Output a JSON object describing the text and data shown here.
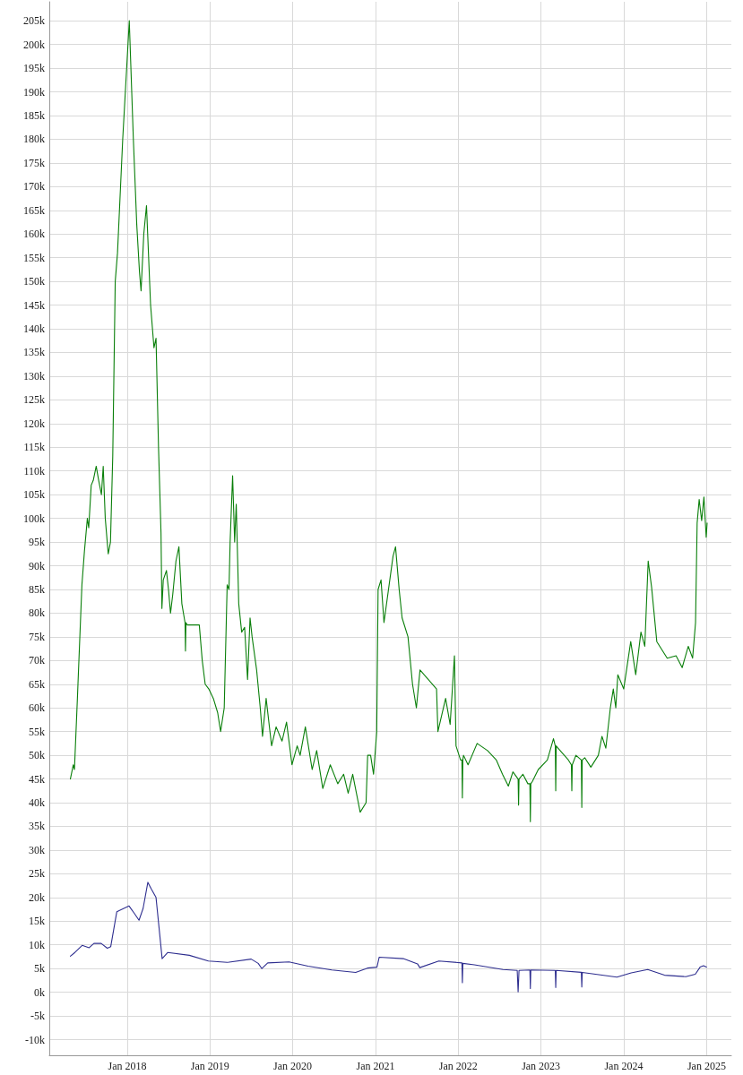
{
  "chart_data": {
    "type": "line",
    "xlim": [
      "2017-01-22",
      "2025-04-20"
    ],
    "ylim": [
      -13300,
      209000
    ],
    "xticks": [
      {
        "value": "2018-01-01",
        "label": "Jan 2018"
      },
      {
        "value": "2019-01-01",
        "label": "Jan 2019"
      },
      {
        "value": "2020-01-01",
        "label": "Jan 2020"
      },
      {
        "value": "2021-01-01",
        "label": "Jan 2021"
      },
      {
        "value": "2022-01-01",
        "label": "Jan 2022"
      },
      {
        "value": "2023-01-01",
        "label": "Jan 2023"
      },
      {
        "value": "2024-01-01",
        "label": "Jan 2024"
      },
      {
        "value": "2025-01-01",
        "label": "Jan 2025"
      }
    ],
    "yticks": [
      {
        "value": -10000,
        "label": "-10k"
      },
      {
        "value": -5000,
        "label": "-5k"
      },
      {
        "value": 0,
        "label": "0k"
      },
      {
        "value": 5000,
        "label": "5k"
      },
      {
        "value": 10000,
        "label": "10k"
      },
      {
        "value": 15000,
        "label": "15k"
      },
      {
        "value": 20000,
        "label": "20k"
      },
      {
        "value": 25000,
        "label": "25k"
      },
      {
        "value": 30000,
        "label": "30k"
      },
      {
        "value": 35000,
        "label": "35k"
      },
      {
        "value": 40000,
        "label": "40k"
      },
      {
        "value": 45000,
        "label": "45k"
      },
      {
        "value": 50000,
        "label": "50k"
      },
      {
        "value": 55000,
        "label": "55k"
      },
      {
        "value": 60000,
        "label": "60k"
      },
      {
        "value": 65000,
        "label": "65k"
      },
      {
        "value": 70000,
        "label": "70k"
      },
      {
        "value": 75000,
        "label": "75k"
      },
      {
        "value": 80000,
        "label": "80k"
      },
      {
        "value": 85000,
        "label": "85k"
      },
      {
        "value": 90000,
        "label": "90k"
      },
      {
        "value": 95000,
        "label": "95k"
      },
      {
        "value": 100000,
        "label": "100k"
      },
      {
        "value": 105000,
        "label": "105k"
      },
      {
        "value": 110000,
        "label": "110k"
      },
      {
        "value": 115000,
        "label": "115k"
      },
      {
        "value": 120000,
        "label": "120k"
      },
      {
        "value": 125000,
        "label": "125k"
      },
      {
        "value": 130000,
        "label": "130k"
      },
      {
        "value": 135000,
        "label": "135k"
      },
      {
        "value": 140000,
        "label": "140k"
      },
      {
        "value": 145000,
        "label": "145k"
      },
      {
        "value": 150000,
        "label": "150k"
      },
      {
        "value": 155000,
        "label": "155k"
      },
      {
        "value": 160000,
        "label": "160k"
      },
      {
        "value": 165000,
        "label": "165k"
      },
      {
        "value": 170000,
        "label": "170k"
      },
      {
        "value": 175000,
        "label": "175k"
      },
      {
        "value": 180000,
        "label": "180k"
      },
      {
        "value": 185000,
        "label": "185k"
      },
      {
        "value": 190000,
        "label": "190k"
      },
      {
        "value": 195000,
        "label": "195k"
      },
      {
        "value": 200000,
        "label": "200k"
      },
      {
        "value": 205000,
        "label": "205k"
      }
    ],
    "grid": true,
    "marker": "none",
    "series": [
      {
        "color": "#0a7f0a",
        "x": [
          "2017-04-25",
          "2017-05-08",
          "2017-05-13",
          "2017-05-26",
          "2017-06-15",
          "2017-06-26",
          "2017-07-09",
          "2017-07-15",
          "2017-07-26",
          "2017-08-04",
          "2017-08-17",
          "2017-08-28",
          "2017-09-09",
          "2017-09-17",
          "2017-09-26",
          "2017-10-09",
          "2017-10-19",
          "2017-10-29",
          "2017-11-09",
          "2017-11-19",
          "2017-12-12",
          "2018-01-10",
          "2018-01-28",
          "2018-02-12",
          "2018-02-24",
          "2018-03-03",
          "2018-03-15",
          "2018-03-27",
          "2018-04-14",
          "2018-04-29",
          "2018-05-08",
          "2018-05-19",
          "2018-05-30",
          "2018-06-03",
          "2018-06-09",
          "2018-06-23",
          "2018-07-02",
          "2018-07-11",
          "2018-07-21",
          "2018-08-04",
          "2018-08-17",
          "2018-08-30",
          "2018-09-13",
          "2018-09-15",
          "2018-09-17",
          "2018-09-23",
          "2018-11-15",
          "2018-11-28",
          "2018-12-11",
          "2018-12-27",
          "2019-01-16",
          "2019-02-04",
          "2019-02-17",
          "2019-03-05",
          "2019-03-18",
          "2019-03-26",
          "2019-03-31",
          "2019-04-11",
          "2019-04-20",
          "2019-04-27",
          "2019-05-08",
          "2019-05-21",
          "2019-06-03",
          "2019-06-16",
          "2019-06-27",
          "2019-07-06",
          "2019-07-26",
          "2019-08-11",
          "2019-08-21",
          "2019-09-06",
          "2019-09-30",
          "2019-10-20",
          "2019-11-15",
          "2019-12-05",
          "2019-12-29",
          "2020-01-21",
          "2020-02-03",
          "2020-02-26",
          "2020-03-27",
          "2020-04-16",
          "2020-05-13",
          "2020-06-15",
          "2020-07-18",
          "2020-08-13",
          "2020-09-02",
          "2020-09-22",
          "2020-10-25",
          "2020-11-20",
          "2020-11-27",
          "2020-12-10",
          "2020-12-23",
          "2021-01-06",
          "2021-01-12",
          "2021-01-25",
          "2021-02-07",
          "2021-03-19",
          "2021-03-30",
          "2021-04-15",
          "2021-04-28",
          "2021-05-24",
          "2021-06-13",
          "2021-06-30",
          "2021-07-16",
          "2021-09-27",
          "2021-10-03",
          "2021-11-06",
          "2021-11-26",
          "2021-12-15",
          "2021-12-22",
          "2022-01-11",
          "2022-01-17",
          "2022-01-19",
          "2022-01-21",
          "2022-01-24",
          "2022-02-13",
          "2022-03-25",
          "2022-05-10",
          "2022-06-18",
          "2022-07-15",
          "2022-08-10",
          "2022-08-30",
          "2022-09-22",
          "2022-09-24",
          "2022-09-26",
          "2022-10-13",
          "2022-11-04",
          "2022-11-13",
          "2022-11-15",
          "2022-11-17",
          "2022-11-24",
          "2022-12-20",
          "2023-01-29",
          "2023-02-25",
          "2023-03-05",
          "2023-03-07",
          "2023-03-09",
          "2023-03-17",
          "2023-05-02",
          "2023-05-15",
          "2023-05-17",
          "2023-05-19",
          "2023-06-04",
          "2023-06-28",
          "2023-06-30",
          "2023-07-02",
          "2023-07-13",
          "2023-08-09",
          "2023-09-11",
          "2023-09-27",
          "2023-10-14",
          "2023-11-03",
          "2023-11-16",
          "2023-11-27",
          "2023-12-06",
          "2024-01-01",
          "2024-02-01",
          "2024-02-23",
          "2024-03-17",
          "2024-04-03",
          "2024-04-18",
          "2024-05-03",
          "2024-05-26",
          "2024-07-11",
          "2024-08-19",
          "2024-09-15",
          "2024-10-12",
          "2024-10-31",
          "2024-11-13",
          "2024-11-20",
          "2024-11-29",
          "2024-12-10",
          "2024-12-20",
          "2024-12-30",
          "2025-01-03"
        ],
        "values": [
          45000,
          48000,
          47000,
          62000,
          86000,
          93000,
          100000,
          98000,
          107000,
          108000,
          111000,
          108000,
          105000,
          111000,
          100000,
          92500,
          95000,
          113000,
          150000,
          156000,
          180000,
          205000,
          180000,
          162000,
          152000,
          148000,
          160000,
          166000,
          145000,
          136000,
          138000,
          115000,
          97000,
          81000,
          87000,
          89000,
          85000,
          80000,
          84000,
          91000,
          94000,
          82000,
          78000,
          72000,
          78000,
          77500,
          77500,
          70000,
          65000,
          64000,
          62000,
          59000,
          55000,
          60000,
          86000,
          85000,
          95000,
          109000,
          95000,
          103000,
          82000,
          76000,
          77000,
          66000,
          79000,
          75000,
          68000,
          60000,
          54000,
          62000,
          52000,
          56000,
          53000,
          57000,
          48000,
          52000,
          50000,
          56000,
          47000,
          51000,
          43000,
          48000,
          44000,
          46000,
          42000,
          46000,
          38000,
          40000,
          50000,
          50000,
          46000,
          55000,
          85000,
          87000,
          78000,
          92000,
          94000,
          85000,
          79000,
          75000,
          65000,
          60000,
          68000,
          64000,
          55000,
          62000,
          56500,
          71000,
          52000,
          49000,
          49000,
          41000,
          49000,
          50000,
          48000,
          52500,
          51000,
          49000,
          46000,
          43500,
          46500,
          45000,
          39500,
          45000,
          46000,
          44000,
          44000,
          36000,
          44000,
          44500,
          47000,
          49000,
          53500,
          52000,
          42500,
          52000,
          51500,
          49000,
          48000,
          42500,
          48000,
          50000,
          49000,
          39000,
          49000,
          49500,
          47500,
          50000,
          54000,
          51500,
          60000,
          64000,
          60000,
          67000,
          64000,
          74000,
          67000,
          76000,
          73000,
          91000,
          85500,
          74000,
          70500,
          71000,
          68500,
          73000,
          70500,
          78000,
          99000,
          104000,
          99500,
          104500,
          96000,
          99000
        ]
      },
      {
        "color": "#2e2e8f",
        "x": [
          "2017-04-25",
          "2017-05-15",
          "2017-06-16",
          "2017-07-17",
          "2017-08-07",
          "2017-09-08",
          "2017-10-05",
          "2017-10-20",
          "2017-11-16",
          "2018-01-09",
          "2018-01-30",
          "2018-02-22",
          "2018-03-12",
          "2018-04-02",
          "2018-04-17",
          "2018-05-08",
          "2018-06-04",
          "2018-06-29",
          "2018-10-02",
          "2018-12-25",
          "2019-03-18",
          "2019-07-02",
          "2019-08-02",
          "2019-08-18",
          "2019-09-13",
          "2019-12-16",
          "2020-03-09",
          "2020-06-22",
          "2020-10-05",
          "2020-11-26",
          "2021-01-07",
          "2021-01-17",
          "2021-05-03",
          "2021-07-05",
          "2021-07-15",
          "2021-10-07",
          "2022-01-17",
          "2022-01-19",
          "2022-01-21",
          "2022-03-13",
          "2022-07-17",
          "2022-09-18",
          "2022-09-22",
          "2022-09-26",
          "2022-11-13",
          "2022-11-15",
          "2022-11-17",
          "2023-03-05",
          "2023-03-07",
          "2023-03-09",
          "2023-06-28",
          "2023-06-30",
          "2023-07-02",
          "2023-12-02",
          "2024-02-03",
          "2024-04-16",
          "2024-06-29",
          "2024-10-01",
          "2024-11-12",
          "2024-12-03",
          "2024-12-18",
          "2024-12-31"
        ],
        "values": [
          7600,
          8400,
          9900,
          9400,
          10300,
          10300,
          9300,
          9600,
          17000,
          18200,
          16800,
          15200,
          17700,
          23200,
          21800,
          20000,
          7100,
          8400,
          7800,
          6600,
          6300,
          7000,
          6100,
          5000,
          6200,
          6400,
          5500,
          4700,
          4200,
          5100,
          5300,
          7400,
          7100,
          6000,
          5200,
          6600,
          6200,
          2000,
          6100,
          5800,
          4800,
          4600,
          100,
          4600,
          4700,
          800,
          4700,
          4600,
          1000,
          4600,
          4200,
          1100,
          4200,
          3200,
          4100,
          4800,
          3600,
          3300,
          3800,
          5300,
          5600,
          5300
        ]
      }
    ]
  }
}
